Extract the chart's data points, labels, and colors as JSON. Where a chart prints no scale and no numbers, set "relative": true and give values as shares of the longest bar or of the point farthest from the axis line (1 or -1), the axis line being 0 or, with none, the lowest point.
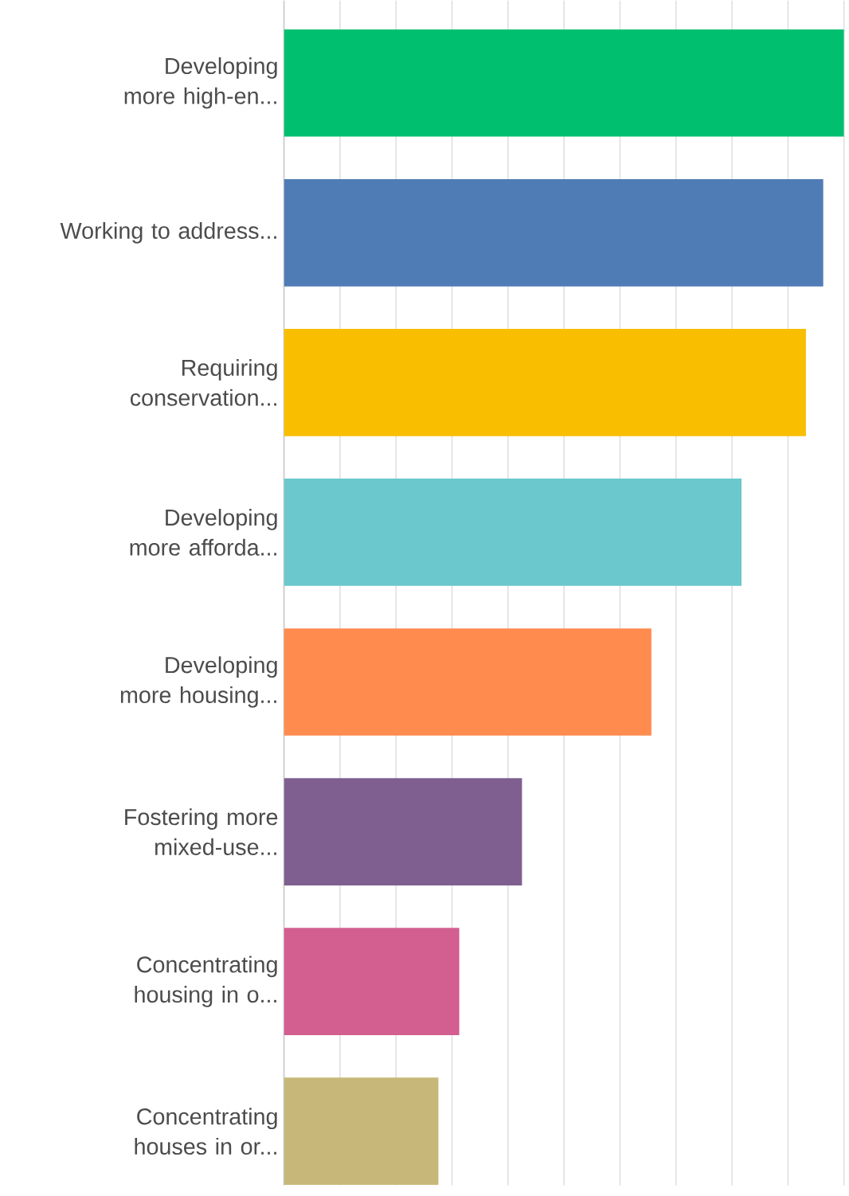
{
  "chart_data": {
    "type": "bar",
    "orientation": "horizontal",
    "relative": true,
    "grid": "x",
    "tick_labels": "y",
    "categories": [
      "Developing more high-en...",
      "Working to address...",
      "Requiring conservation...",
      "Developing more afforda...",
      "Developing more housing...",
      "Fostering more mixed-use...",
      "Concentrating housing in o...",
      "Concentrating houses in or..."
    ],
    "values": [
      1,
      0.963,
      0.932,
      0.817,
      0.656,
      0.425,
      0.313,
      0.276
    ],
    "colors": [
      "#00bf6f",
      "#507cb6",
      "#f9be00",
      "#6bc8cd",
      "#ff8b4f",
      "#7f5f8f",
      "#d25f90",
      "#c7b879"
    ]
  }
}
